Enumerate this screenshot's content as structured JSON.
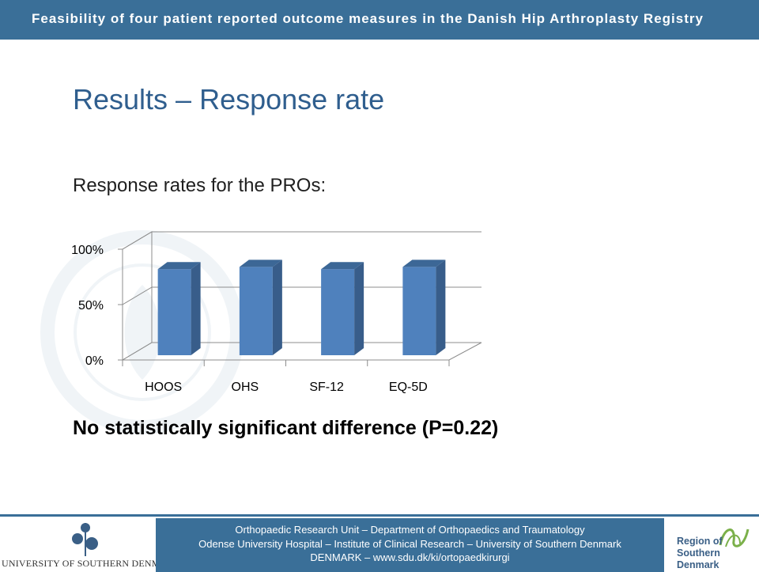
{
  "header": {
    "title": "Feasibility of four patient reported outcome measures in the Danish Hip Arthroplasty Registry"
  },
  "slide": {
    "title": "Results – Response rate",
    "subtitle": "Response rates for the PROs:",
    "conclusion": "No statistically significant difference (P=0.22)"
  },
  "chart_data": {
    "type": "bar",
    "categories": [
      "HOOS",
      "OHS",
      "SF-12",
      "EQ-5D"
    ],
    "values": [
      82,
      84,
      82,
      84
    ],
    "y_ticks": [
      "0%",
      "50%",
      "100%"
    ],
    "ylim": [
      0,
      100
    ],
    "grid": true,
    "bar_color": "#4f81bd",
    "bar_side_color": "#385d8a",
    "bar_top_color": "#3c6796"
  },
  "footer": {
    "line1": "Orthopaedic Research  Unit – Department of Orthopaedics and Traumatology",
    "line2": "Odense University Hospital – Institute of Clinical Research – University of Southern Denmark",
    "line3": "DENMARK – www.sdu.dk/ki/ortopaedkirurgi",
    "logo_left_text": "UNIVERSITY OF SOUTHERN DENMARK",
    "logo_right_line1": "Region of",
    "logo_right_line2": "Southern Denmark"
  },
  "colors": {
    "brand_blue": "#3a6f98",
    "title_blue": "#2f5e8e"
  }
}
